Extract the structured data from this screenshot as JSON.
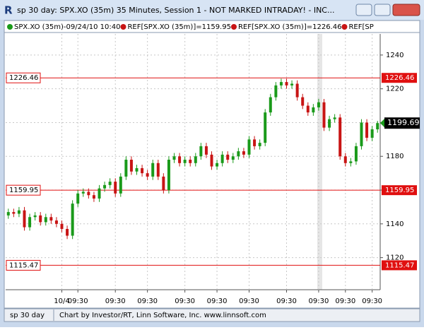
{
  "window": {
    "title": "sp 30 day: SPX.XO (35m) 35 Minutes, Session 1 - NOT MARKED INTRADAY! - INC...",
    "status_left": "sp 30 day",
    "status_text": "Chart by Investor/RT, Linn Software, Inc. www.linnsoft.com"
  },
  "chart_data": {
    "type": "candlestick",
    "legend": [
      "SPX.XO (35m)-09/24/10 10:40",
      "REF[SPX.XO (35m)]=1159.95",
      "REF[SPX.XO (35m)]=1226.46",
      "REF[SP"
    ],
    "categories": [
      null,
      null,
      null,
      null,
      null,
      null,
      null,
      null,
      null,
      null,
      "10/4",
      null,
      null,
      "09:30",
      null,
      null,
      null,
      null,
      null,
      null,
      "09:30",
      null,
      null,
      null,
      null,
      null,
      "09:30",
      null,
      null,
      null,
      null,
      null,
      null,
      "09:30",
      null,
      null,
      null,
      null,
      null,
      "09:30",
      null,
      null,
      null,
      null,
      null,
      "09:30",
      null,
      null,
      null,
      null,
      null,
      null,
      "09:30",
      null,
      null,
      null,
      null,
      null,
      "09:30",
      null,
      null,
      null,
      null,
      "09:30",
      null,
      null,
      null,
      null,
      "09:30",
      null
    ],
    "open": [
      1145,
      1147,
      1146,
      1148,
      1138,
      1144,
      1145,
      1141,
      1144,
      1142,
      1140,
      1137,
      1133,
      1152,
      1158,
      1159,
      1157,
      1155,
      1161,
      1163,
      1165,
      1158,
      1168,
      1178,
      1171,
      1173,
      1170,
      1168,
      1176,
      1168,
      1160,
      1178,
      1180,
      1176,
      1178,
      1176,
      1180,
      1186,
      1181,
      1174,
      1176,
      1181,
      1178,
      1180,
      1183,
      1181,
      1190,
      1186,
      1188,
      1206,
      1215,
      1222,
      1224,
      1222,
      1223,
      1215,
      1210,
      1206,
      1209,
      1212,
      1197,
      1202,
      1203,
      1180,
      1176,
      1177,
      1186,
      1200,
      1191,
      1196
    ],
    "high": [
      1149,
      1149,
      1150,
      1150,
      1146,
      1147,
      1147,
      1146,
      1146,
      1144,
      1142,
      1139,
      1154,
      1160,
      1161,
      1161,
      1159,
      1163,
      1165,
      1167,
      1167,
      1170,
      1180,
      1180,
      1175,
      1175,
      1172,
      1178,
      1178,
      1170,
      1180,
      1182,
      1182,
      1180,
      1180,
      1182,
      1188,
      1188,
      1183,
      1178,
      1183,
      1183,
      1182,
      1185,
      1185,
      1192,
      1192,
      1190,
      1208,
      1217,
      1224,
      1226,
      1226,
      1225,
      1225,
      1217,
      1212,
      1211,
      1214,
      1214,
      1204,
      1205,
      1205,
      1182,
      1179,
      1188,
      1202,
      1202,
      1198,
      1201
    ],
    "low": [
      1143,
      1144,
      1144,
      1136,
      1136,
      1142,
      1139,
      1139,
      1140,
      1138,
      1135,
      1131,
      1131,
      1150,
      1156,
      1155,
      1153,
      1153,
      1159,
      1161,
      1156,
      1156,
      1166,
      1169,
      1169,
      1168,
      1166,
      1166,
      1166,
      1158,
      1158,
      1176,
      1174,
      1174,
      1174,
      1174,
      1178,
      1179,
      1172,
      1172,
      1174,
      1176,
      1176,
      1178,
      1179,
      1179,
      1184,
      1184,
      1186,
      1204,
      1213,
      1220,
      1220,
      1220,
      1213,
      1208,
      1204,
      1204,
      1207,
      1195,
      1195,
      1200,
      1178,
      1174,
      1174,
      1175,
      1184,
      1189,
      1189,
      1194
    ],
    "close": [
      1147,
      1146,
      1148,
      1138,
      1144,
      1145,
      1141,
      1144,
      1142,
      1140,
      1137,
      1133,
      1152,
      1158,
      1159,
      1157,
      1155,
      1161,
      1163,
      1165,
      1158,
      1168,
      1178,
      1171,
      1173,
      1170,
      1168,
      1176,
      1168,
      1160,
      1178,
      1180,
      1176,
      1178,
      1176,
      1180,
      1186,
      1181,
      1174,
      1176,
      1181,
      1178,
      1180,
      1183,
      1181,
      1190,
      1186,
      1188,
      1206,
      1215,
      1222,
      1224,
      1222,
      1223,
      1215,
      1210,
      1206,
      1209,
      1212,
      1197,
      1202,
      1203,
      1180,
      1176,
      1177,
      1186,
      1200,
      1191,
      1196,
      1199.69
    ],
    "up_color": "#1a9a1a",
    "down_color": "#c81414",
    "reference_lines": [
      1226.46,
      1159.95,
      1115.47
    ],
    "reference_color": "#e01010",
    "ylim": [
      1101,
      1252.5
    ],
    "yticks": [
      1120,
      1140,
      1160,
      1180,
      1200,
      1220,
      1240
    ],
    "grid": true
  }
}
